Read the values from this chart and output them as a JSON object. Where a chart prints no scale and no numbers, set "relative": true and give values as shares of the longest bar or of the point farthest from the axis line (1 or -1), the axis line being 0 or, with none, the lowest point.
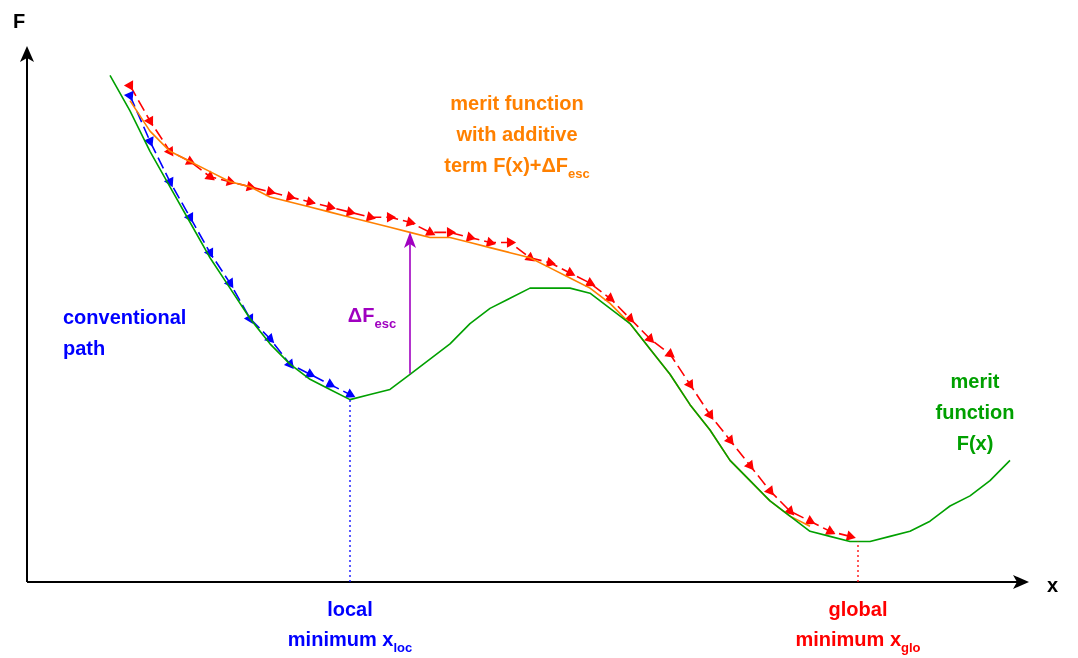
{
  "chart_data": {
    "type": "line",
    "relative": true,
    "xlabel": "x",
    "ylabel": "F",
    "legend": false,
    "grid": false,
    "tick_labels": false,
    "categories": [
      null,
      null,
      null,
      null,
      null,
      null,
      null,
      null,
      null,
      null,
      null,
      null,
      null,
      null,
      null,
      null,
      null,
      null,
      null,
      null,
      null,
      null,
      null,
      null,
      null,
      null,
      null,
      null,
      null,
      null,
      null,
      null,
      null,
      null,
      null,
      null,
      null,
      null,
      null,
      null,
      null,
      null,
      null,
      null,
      null,
      null,
      null,
      null,
      null,
      null
    ],
    "series": [
      {
        "name": "merit function F(x)",
        "color": "#00a000",
        "marker": "none",
        "line_style": "solid",
        "values": [
          null,
          null,
          null,
          null,
          1.0,
          0.93,
          0.85,
          0.78,
          0.71,
          0.64,
          0.58,
          0.52,
          0.47,
          0.43,
          0.4,
          0.38,
          0.36,
          0.37,
          0.38,
          0.41,
          0.44,
          0.47,
          0.51,
          0.54,
          0.56,
          0.58,
          0.58,
          0.58,
          0.57,
          0.54,
          0.51,
          0.46,
          0.41,
          0.35,
          0.3,
          0.24,
          0.2,
          0.16,
          0.13,
          0.1,
          0.09,
          0.08,
          0.08,
          0.09,
          0.1,
          0.12,
          0.15,
          0.17,
          0.2,
          0.24
        ]
      },
      {
        "name": "merit function with additive term F(x)+ΔF$_{esc}$",
        "color": "#ff8000",
        "marker": "none",
        "line_style": "solid",
        "values": [
          null,
          null,
          null,
          null,
          null,
          0.95,
          0.89,
          0.85,
          0.83,
          0.81,
          0.79,
          0.78,
          0.76,
          0.75,
          0.74,
          0.73,
          0.72,
          0.71,
          0.7,
          0.69,
          0.68,
          0.68,
          0.67,
          0.66,
          0.65,
          0.64,
          0.62,
          0.6,
          0.58,
          0.55,
          0.51,
          0.46,
          0.41,
          0.35,
          0.3,
          0.24,
          0.2,
          0.16,
          0.13,
          0.11,
          null,
          null,
          null,
          null,
          null,
          null,
          null,
          null,
          null,
          null
        ]
      },
      {
        "name": "conventional path",
        "color": "#0000ff",
        "marker": "triangle",
        "line_style": "dashed",
        "values": [
          null,
          null,
          null,
          null,
          null,
          0.96,
          0.87,
          0.79,
          0.72,
          0.65,
          0.59,
          0.52,
          0.48,
          0.43,
          0.41,
          0.39,
          0.37,
          null,
          null,
          null,
          null,
          null,
          null,
          null,
          null,
          null,
          null,
          null,
          null,
          null,
          null,
          null,
          null,
          null,
          null,
          null,
          null,
          null,
          null,
          null,
          null,
          null,
          null,
          null,
          null,
          null,
          null,
          null,
          null,
          null
        ]
      },
      {
        "color": "#ff0000",
        "marker": "triangle",
        "line_style": "dashed",
        "values": [
          null,
          null,
          null,
          null,
          null,
          0.98,
          0.91,
          0.85,
          0.83,
          0.8,
          0.79,
          0.78,
          0.77,
          0.76,
          0.75,
          0.74,
          0.73,
          0.72,
          0.72,
          0.71,
          0.69,
          0.69,
          0.68,
          0.67,
          0.67,
          0.64,
          0.63,
          0.61,
          0.59,
          0.56,
          0.52,
          0.48,
          0.45,
          0.39,
          0.33,
          0.28,
          0.23,
          0.18,
          0.14,
          0.12,
          0.1,
          0.09,
          null,
          null,
          null,
          null,
          null,
          null,
          null,
          null
        ]
      }
    ],
    "annotations": [
      "ΔF$_{esc}$",
      "local minimum x$_{loc}$",
      "global minimum x$_{glo}$"
    ]
  }
}
